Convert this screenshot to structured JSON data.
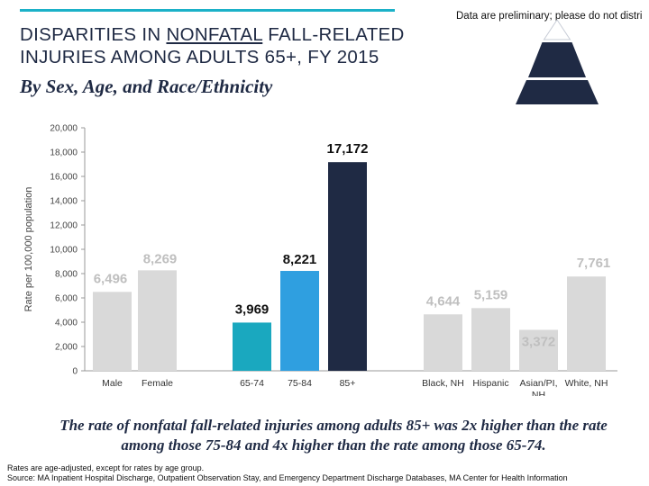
{
  "header": {
    "prelim_note": "Data are preliminary; please do not distri",
    "title_part1": "DISPARITIES IN ",
    "title_underlined": "NONFATAL",
    "title_part2": " FALL-RELATED",
    "title_line2": "INJURIES AMONG ADULTS 65+, FY 2015",
    "subtitle": "By Sex, Age, and Race/Ethnicity"
  },
  "colors": {
    "accent_line": "#1bb1c8",
    "navy": "#1f2a44",
    "sky": "#2f9fe0",
    "teal": "#1aa8bf",
    "grey_bar": "#d9d9d9",
    "label_dark": "#111111",
    "label_grey": "#bfbfbf"
  },
  "chart_data": {
    "type": "bar",
    "title": "Disparities in nonfatal fall-related injuries among adults 65+, FY 2015",
    "xlabel": "",
    "ylabel": "Rate per 100,000 population",
    "ylim": [
      0,
      20000
    ],
    "yticks": [
      0,
      2000,
      4000,
      6000,
      8000,
      10000,
      12000,
      14000,
      16000,
      18000,
      20000
    ],
    "ytick_labels": [
      "0",
      "2,000",
      "4,000",
      "6,000",
      "8,000",
      "10,000",
      "12,000",
      "14,000",
      "16,000",
      "18,000",
      "20,000"
    ],
    "grid": false,
    "bars": [
      {
        "category": "Male",
        "value": 6496,
        "label": "6,496",
        "group": "sex",
        "color": "#d9d9d9",
        "label_color": "#bfbfbf"
      },
      {
        "category": "Female",
        "value": 8269,
        "label": "8,269",
        "group": "sex",
        "color": "#d9d9d9",
        "label_color": "#bfbfbf"
      },
      {
        "category": "65-74",
        "value": 3969,
        "label": "3,969",
        "group": "age",
        "color": "#1aa8bf",
        "label_color": "#111111"
      },
      {
        "category": "75-84",
        "value": 8221,
        "label": "8,221",
        "group": "age",
        "color": "#2f9fe0",
        "label_color": "#111111"
      },
      {
        "category": "85+",
        "value": 17172,
        "label": "17,172",
        "group": "age",
        "color": "#1f2a44",
        "label_color": "#111111"
      },
      {
        "category": "Black, NH",
        "value": 4644,
        "label": "4,644",
        "group": "race",
        "color": "#d9d9d9",
        "label_color": "#bfbfbf"
      },
      {
        "category": "Hispanic",
        "value": 5159,
        "label": "5,159",
        "group": "race",
        "color": "#d9d9d9",
        "label_color": "#bfbfbf"
      },
      {
        "category": "Asian/PI, NH",
        "value": 3372,
        "label": "3,372",
        "group": "race",
        "color": "#d9d9d9",
        "label_color": "#bfbfbf"
      },
      {
        "category": "White, NH",
        "value": 7761,
        "label": "7,761",
        "group": "race",
        "color": "#d9d9d9",
        "label_color": "#bfbfbf"
      }
    ]
  },
  "takeaway": "The rate of nonfatal fall-related injuries among adults 85+ was 2x higher than the rate among those 75-84 and 4x higher than the rate among those 65-74.",
  "footnotes": {
    "line1": "Rates are age-adjusted, except for rates by age group.",
    "line2": "Source: MA Inpatient Hospital Discharge, Outpatient Observation Stay, and Emergency Department Discharge Databases, MA Center for Health Information"
  }
}
